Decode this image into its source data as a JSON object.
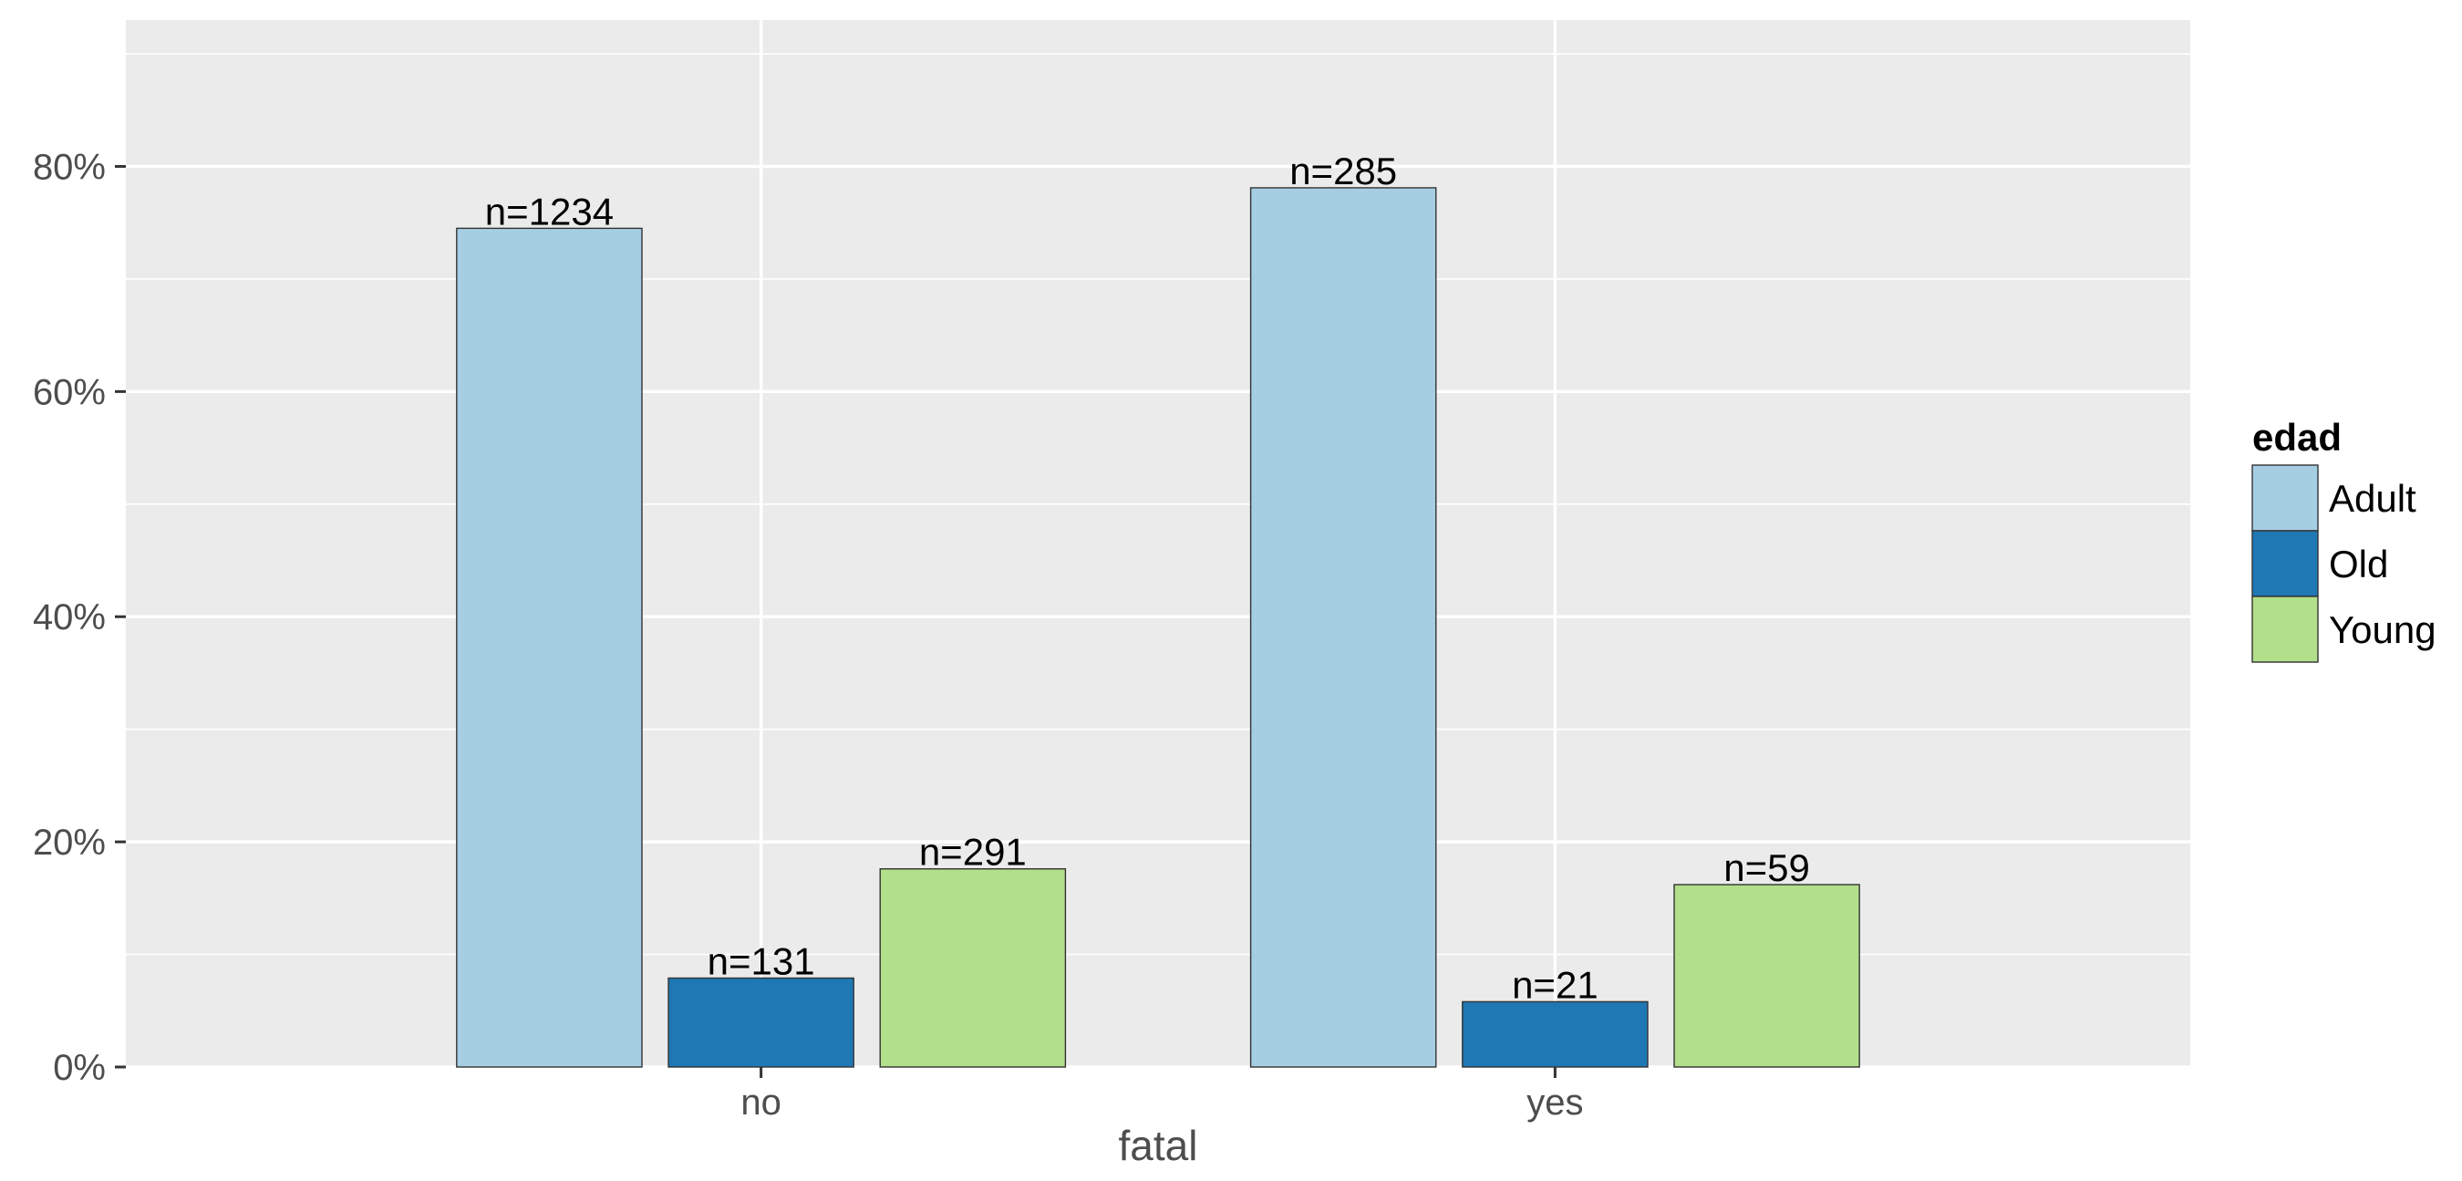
{
  "chart_data": {
    "type": "bar",
    "title": "",
    "xlabel": "fatal",
    "ylabel": "",
    "categories": [
      "no",
      "yes"
    ],
    "series": [
      {
        "name": "Adult",
        "color": "#A6CEE3",
        "values": [
          74.5,
          78.1
        ],
        "labels": [
          "n=1234",
          "n=285"
        ]
      },
      {
        "name": "Old",
        "color": "#1F78B4",
        "values": [
          7.9,
          5.8
        ],
        "labels": [
          "n=131",
          "n=21"
        ]
      },
      {
        "name": "Young",
        "color": "#B2DF8A",
        "values": [
          17.6,
          16.2
        ],
        "labels": [
          "n=291",
          "n=59"
        ]
      }
    ],
    "ylim": [
      0,
      93
    ],
    "yticks": [
      0,
      20,
      40,
      60,
      80
    ],
    "ytick_labels": [
      "0%",
      "20%",
      "40%",
      "60%",
      "80%"
    ],
    "grid": true,
    "legend": {
      "title": "edad",
      "position": "right"
    },
    "colors": {
      "panel": "#EBEBEB",
      "grid": "#FFFFFF",
      "bar_border": "#333333"
    }
  }
}
